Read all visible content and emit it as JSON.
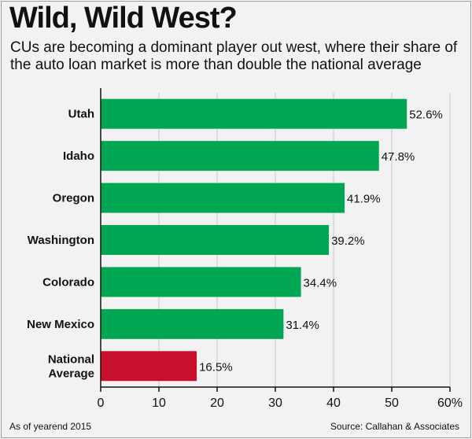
{
  "title": "Wild, Wild West?",
  "subtitle": "CUs are becoming a dominant player out west, where their share of the auto loan market is more than double the national average",
  "footnote": "As of yearend 2015",
  "source": "Source: Callahan & Associates",
  "colors": {
    "state_bar": "#00a651",
    "national_bar": "#c8102e"
  },
  "chart_data": {
    "type": "bar",
    "orientation": "horizontal",
    "categories": [
      [
        "Utah"
      ],
      [
        "Idaho"
      ],
      [
        "Oregon"
      ],
      [
        "Washington"
      ],
      [
        "Colorado"
      ],
      [
        "New Mexico"
      ],
      [
        "National",
        "Average"
      ]
    ],
    "values": [
      52.6,
      47.8,
      41.9,
      39.2,
      34.4,
      31.4,
      16.5
    ],
    "value_labels": [
      "52.6%",
      "47.8%",
      "41.9%",
      "39.2%",
      "34.4%",
      "31.4%",
      "16.5%"
    ],
    "bar_colors": [
      "#00a651",
      "#00a651",
      "#00a651",
      "#00a651",
      "#00a651",
      "#00a651",
      "#c8102e"
    ],
    "xlim": [
      0,
      60
    ],
    "xticks": [
      0,
      10,
      20,
      30,
      40,
      50,
      60
    ],
    "xtick_labels": [
      "0",
      "10",
      "20",
      "30",
      "40",
      "50",
      "60%"
    ],
    "grid": true
  }
}
